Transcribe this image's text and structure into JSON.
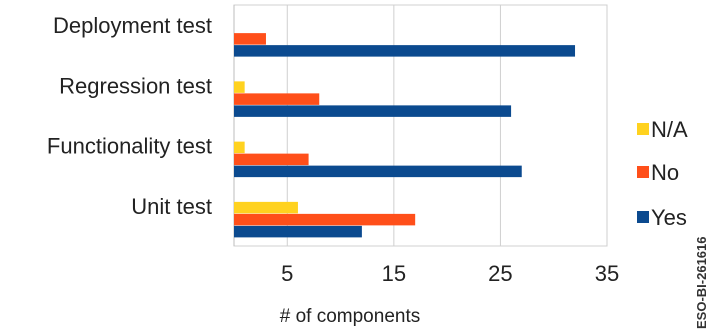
{
  "chart_data": {
    "type": "bar",
    "orientation": "horizontal",
    "categories": [
      "Deployment test",
      "Regression test",
      "Functionality test",
      "Unit test"
    ],
    "series": [
      {
        "name": "N/A",
        "color": "#FFD21F",
        "values": [
          0,
          1,
          1,
          6
        ]
      },
      {
        "name": "No",
        "color": "#FF4F1A",
        "values": [
          3,
          8,
          7,
          17
        ]
      },
      {
        "name": "Yes",
        "color": "#0B4A8F",
        "values": [
          32,
          26,
          27,
          12
        ]
      }
    ],
    "x_ticks": [
      5,
      15,
      25,
      35
    ],
    "xlabel": "# of components",
    "ylabel": "",
    "title": "",
    "xlim": [
      0,
      35
    ],
    "grid": true,
    "legend_position": "right"
  },
  "watermark": "ESO-BI-261616"
}
